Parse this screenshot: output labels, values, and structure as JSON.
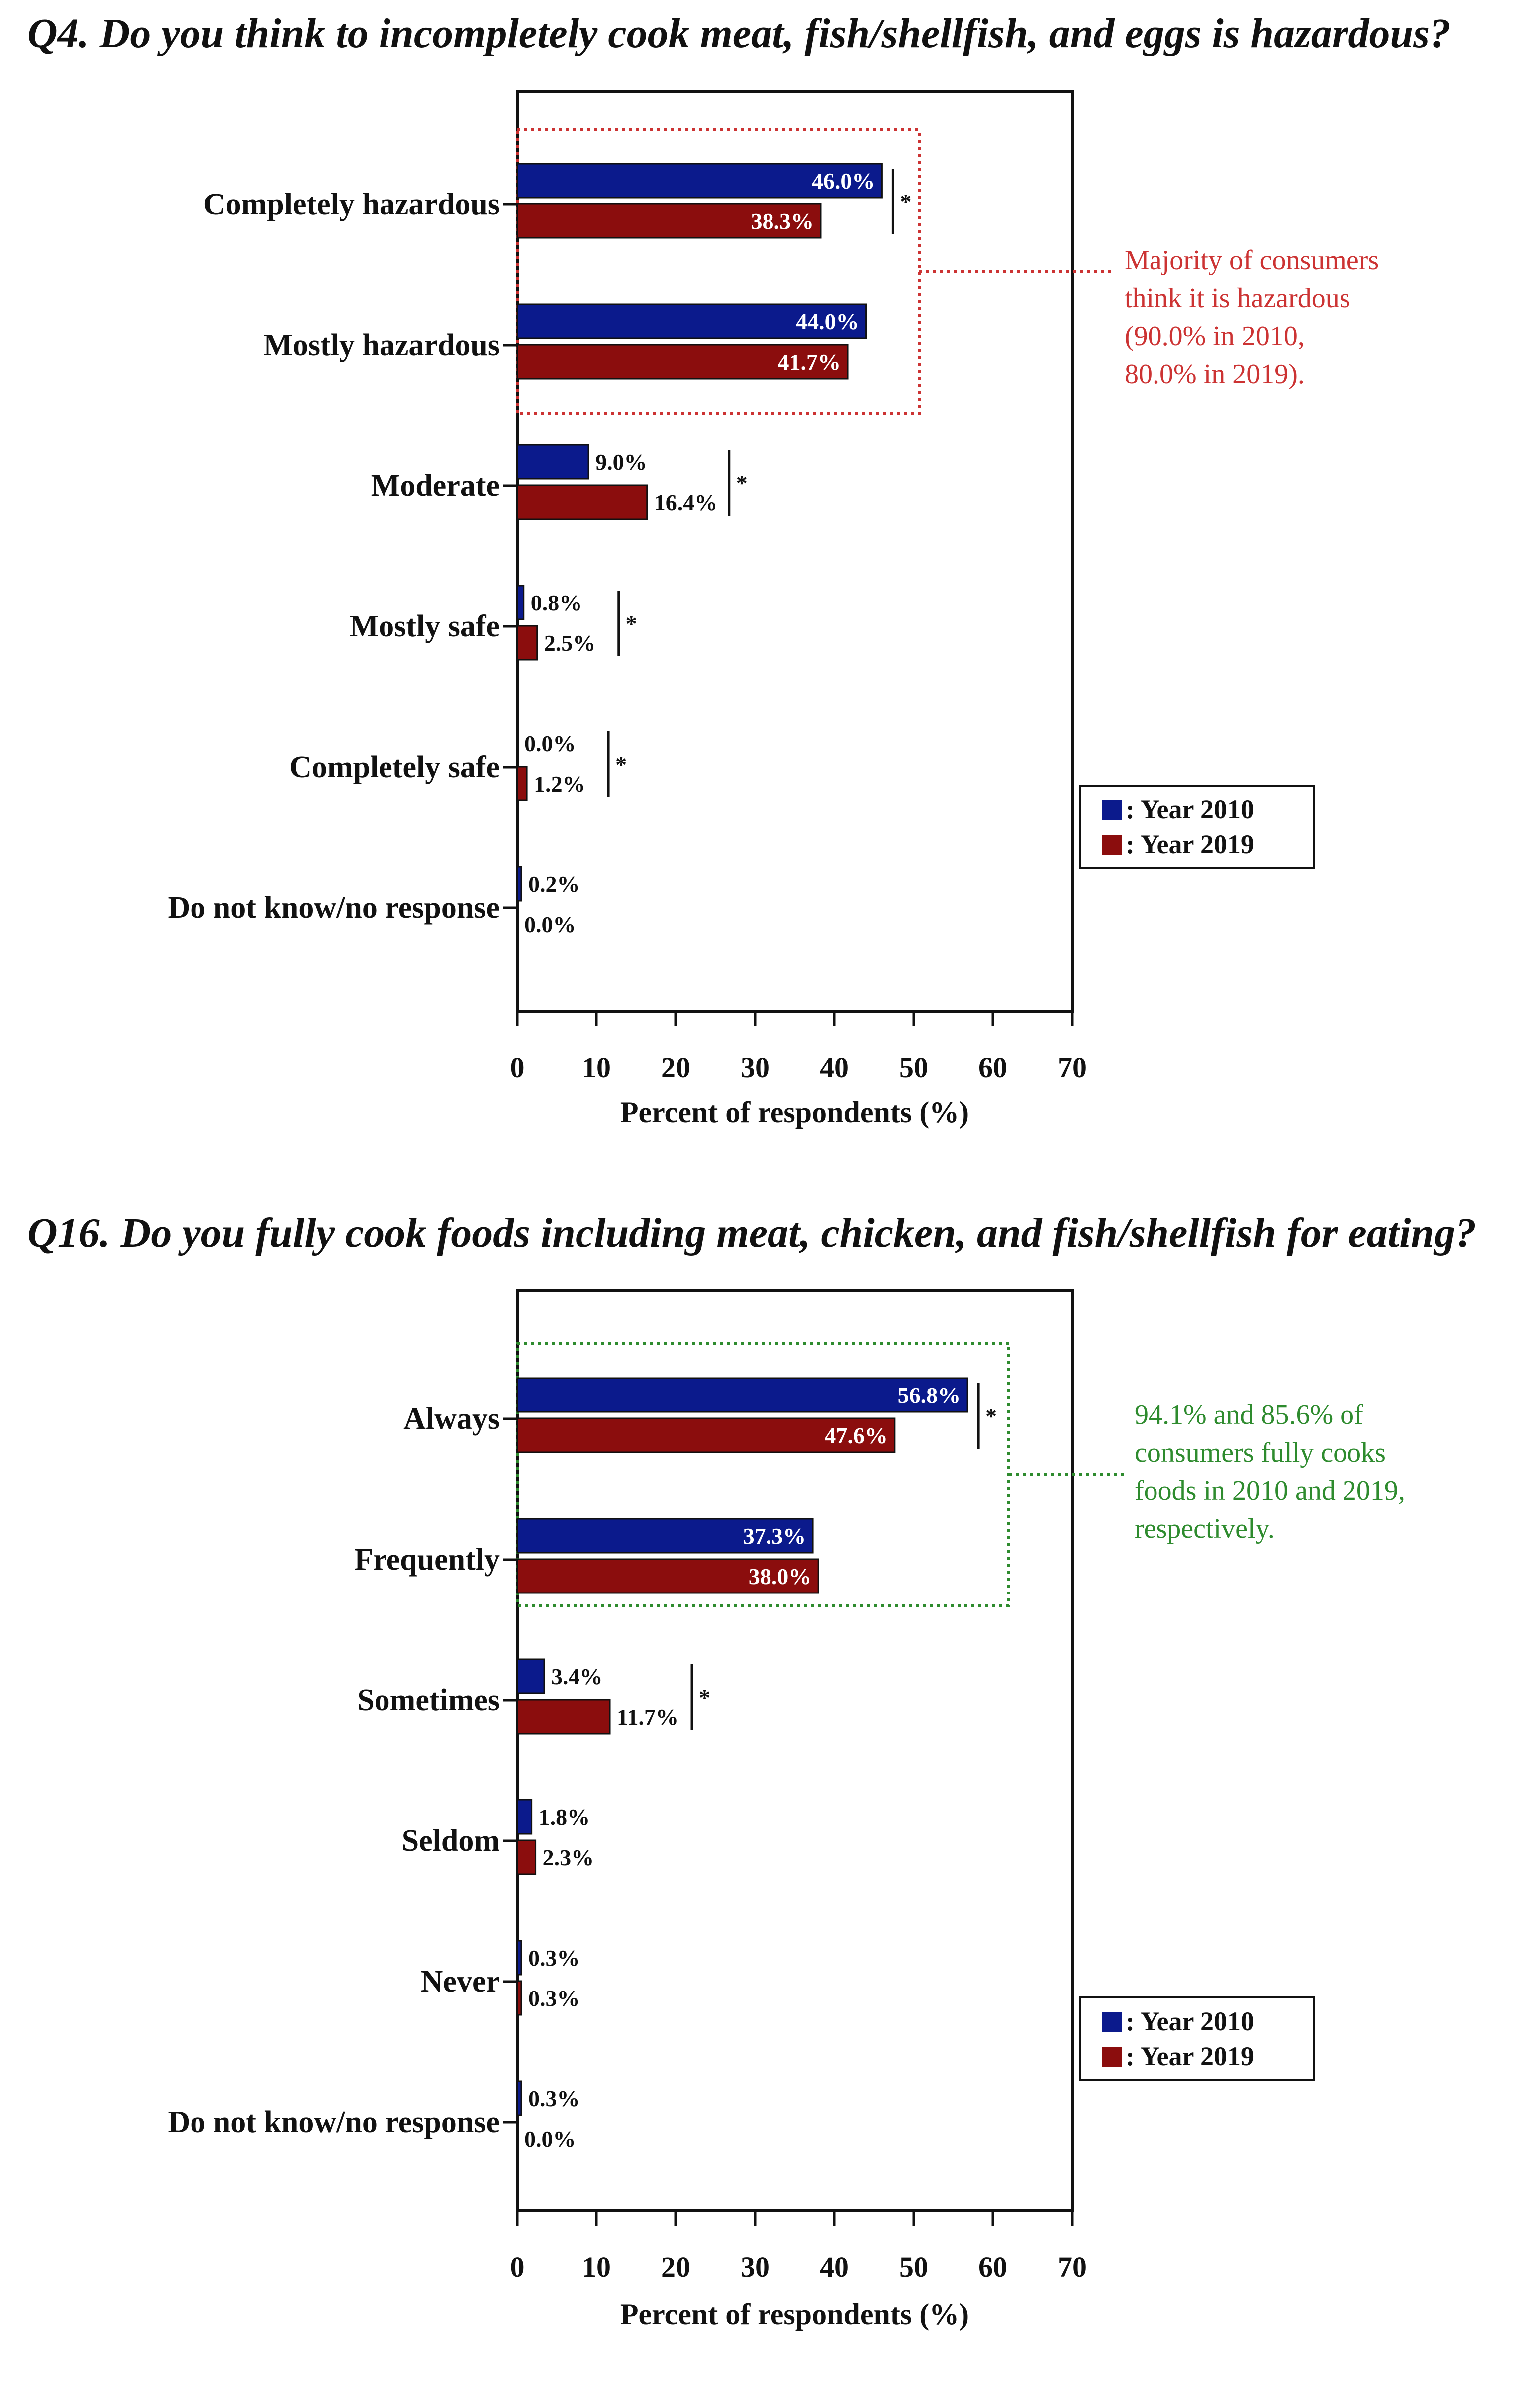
{
  "colors": {
    "year2010": "#0b1a8c",
    "year2019": "#8b0d0d",
    "annotation_red": "#cc3333",
    "annotation_green": "#2e8b2e"
  },
  "chart_data": [
    {
      "type": "bar",
      "orientation": "horizontal",
      "title": "Q4. Do you think to incompletely cook meat, fish/shellfish, and eggs is hazardous?",
      "xlabel": "Percent of respondents (%)",
      "xlim": [
        0,
        70
      ],
      "xticks": [
        "0",
        "10",
        "20",
        "30",
        "40",
        "50",
        "60",
        "70"
      ],
      "categories": [
        "Completely hazardous",
        "Mostly hazardous",
        "Moderate",
        "Mostly safe",
        "Completely safe",
        "Do not know/no response"
      ],
      "series": [
        {
          "name": "Year 2010",
          "values": [
            46.0,
            44.0,
            9.0,
            0.8,
            0.0,
            0.2
          ],
          "labels": [
            "46.0%",
            "44.0%",
            "9.0%",
            "0.8%",
            "0.0%",
            "0.2%"
          ]
        },
        {
          "name": "Year 2019",
          "values": [
            38.3,
            41.7,
            16.4,
            2.5,
            1.2,
            0.0
          ],
          "labels": [
            "38.3%",
            "41.7%",
            "16.4%",
            "2.5%",
            "1.2%",
            "0.0%"
          ]
        }
      ],
      "significance_marker": "*",
      "significant": [
        true,
        false,
        true,
        true,
        true,
        false
      ],
      "legend": {
        "labels": [
          ": Year 2010",
          ": Year 2019"
        ],
        "position": "lower-right"
      },
      "annotation": {
        "lines": [
          "Majority of consumers",
          "think it is hazardous",
          "(90.0% in 2010,",
          " 80.0% in 2019)."
        ],
        "color": "red",
        "groups": [
          "Completely hazardous",
          "Mostly hazardous"
        ]
      }
    },
    {
      "type": "bar",
      "orientation": "horizontal",
      "title": "Q16. Do you fully cook foods including meat, chicken, and fish/shellfish for eating?",
      "xlabel": "Percent of respondents (%)",
      "xlim": [
        0,
        70
      ],
      "xticks": [
        "0",
        "10",
        "20",
        "30",
        "40",
        "50",
        "60",
        "70"
      ],
      "categories": [
        "Always",
        "Frequently",
        "Sometimes",
        "Seldom",
        "Never",
        "Do not know/no response"
      ],
      "series": [
        {
          "name": "Year 2010",
          "values": [
            56.8,
            37.3,
            3.4,
            1.8,
            0.3,
            0.3
          ],
          "labels": [
            "56.8%",
            "37.3%",
            "3.4%",
            "1.8%",
            "0.3%",
            "0.3%"
          ]
        },
        {
          "name": "Year 2019",
          "values": [
            47.6,
            38.0,
            11.7,
            2.3,
            0.3,
            0.0
          ],
          "labels": [
            "47.6%",
            "38.0%",
            "11.7%",
            "2.3%",
            "0.3%",
            "0.0%"
          ]
        }
      ],
      "significance_marker": "*",
      "significant": [
        true,
        false,
        true,
        false,
        false,
        false
      ],
      "legend": {
        "labels": [
          ": Year 2010",
          ": Year 2019"
        ],
        "position": "lower-right"
      },
      "annotation": {
        "lines": [
          "94.1% and 85.6% of",
          "consumers fully cooks",
          "foods in 2010 and 2019,",
          "respectively."
        ],
        "color": "green",
        "groups": [
          "Always",
          "Frequently"
        ]
      }
    }
  ]
}
